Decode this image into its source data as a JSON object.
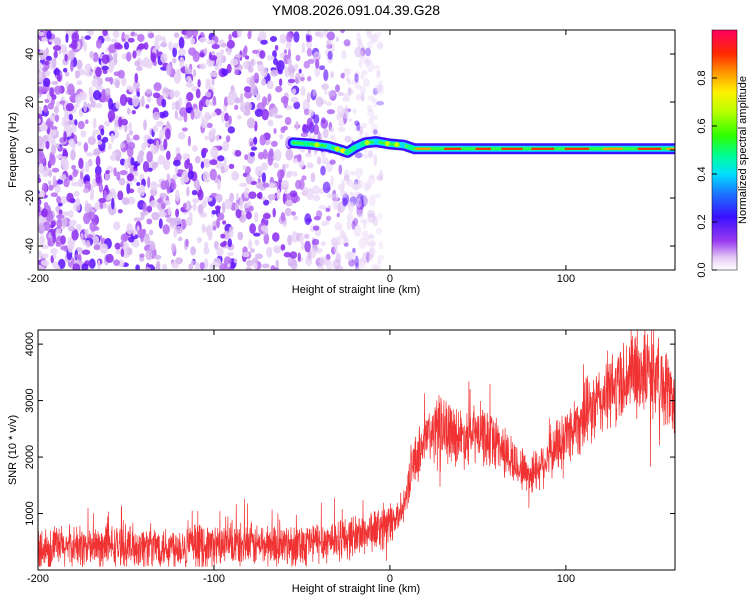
{
  "title": "YM08.2026.091.04.39.G28",
  "chart_data": [
    {
      "type": "heatmap",
      "name": "spectrogram",
      "xlabel": "Height of straight line (km)",
      "ylabel": "Frequency (Hz)",
      "xlim": [
        -200,
        162
      ],
      "ylim": [
        -50,
        50
      ],
      "xticks": [
        -200,
        -100,
        0,
        100
      ],
      "yticks": [
        -40,
        -20,
        0,
        20,
        40
      ],
      "colorbar": {
        "label": "Normalized spectral amplitude",
        "range": [
          0,
          1
        ],
        "ticks": [
          "0.0",
          "0.2",
          "0.4",
          "0.6",
          "0.8"
        ],
        "tick_values": [
          0.0,
          0.2,
          0.4,
          0.6,
          0.8
        ]
      },
      "noise_region": [
        -200,
        -20
      ],
      "signal_track": {
        "x": [
          -55,
          -45,
          -35,
          -28,
          -24,
          -20,
          -14,
          -8,
          0,
          8,
          14,
          40,
          80,
          120,
          162
        ],
        "freq_hz": [
          3,
          2.5,
          1.5,
          0,
          -1,
          1,
          3,
          3.5,
          2.5,
          2,
          0.5,
          0.5,
          0.5,
          0.5,
          0.5
        ]
      }
    },
    {
      "type": "line",
      "name": "snr",
      "xlabel": "Height of straight line (km)",
      "ylabel": "SNR (10 * v/v)",
      "xlim": [
        -200,
        162
      ],
      "ylim": [
        0,
        4250
      ],
      "xticks": [
        -200,
        -100,
        0,
        100
      ],
      "yticks": [
        1000,
        2000,
        3000,
        4000
      ],
      "color": "#f03232",
      "envelope": {
        "x": [
          -200,
          -150,
          -100,
          -60,
          -40,
          -20,
          0,
          8,
          12,
          20,
          30,
          40,
          50,
          60,
          70,
          80,
          90,
          100,
          110,
          120,
          130,
          140,
          150,
          162
        ],
        "y": [
          400,
          420,
          430,
          450,
          500,
          600,
          800,
          1100,
          1800,
          2300,
          2600,
          2350,
          2400,
          2300,
          1900,
          1700,
          2000,
          2400,
          2700,
          3000,
          3300,
          3550,
          3500,
          3000
        ]
      }
    }
  ]
}
